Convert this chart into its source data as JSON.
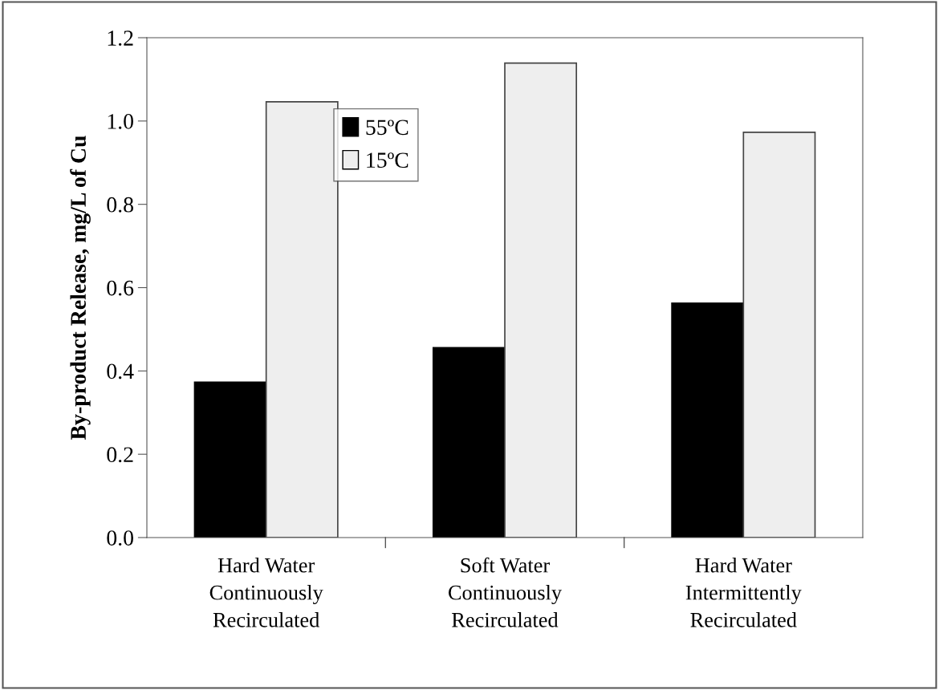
{
  "chart_data": {
    "type": "bar",
    "ylabel": "By-product Release, mg/L of Cu",
    "categories": [
      "Hard Water\nContinuously\nRecirculated",
      "Soft Water\nContinuously\nRecirculated",
      "Hard Water\nIntermittently\nRecirculated"
    ],
    "series": [
      {
        "name": "55ºC",
        "color": "#000000",
        "values": [
          0.373,
          0.456,
          0.563
        ]
      },
      {
        "name": "15ºC",
        "color": "#eeeeee",
        "values": [
          1.046,
          1.139,
          0.973
        ]
      }
    ],
    "ylim": [
      0,
      1.2
    ],
    "yticks": [
      {
        "value": 0,
        "label": "0.0"
      },
      {
        "value": 0.2,
        "label": "0.2"
      },
      {
        "value": 0.4,
        "label": "0.4"
      },
      {
        "value": 0.6,
        "label": "0.6"
      },
      {
        "value": 0.8,
        "label": "0.8"
      },
      {
        "value": 1.0,
        "label": "1.0"
      },
      {
        "value": 1.2,
        "label": "1.2"
      }
    ],
    "grid": false,
    "legend": "top"
  }
}
